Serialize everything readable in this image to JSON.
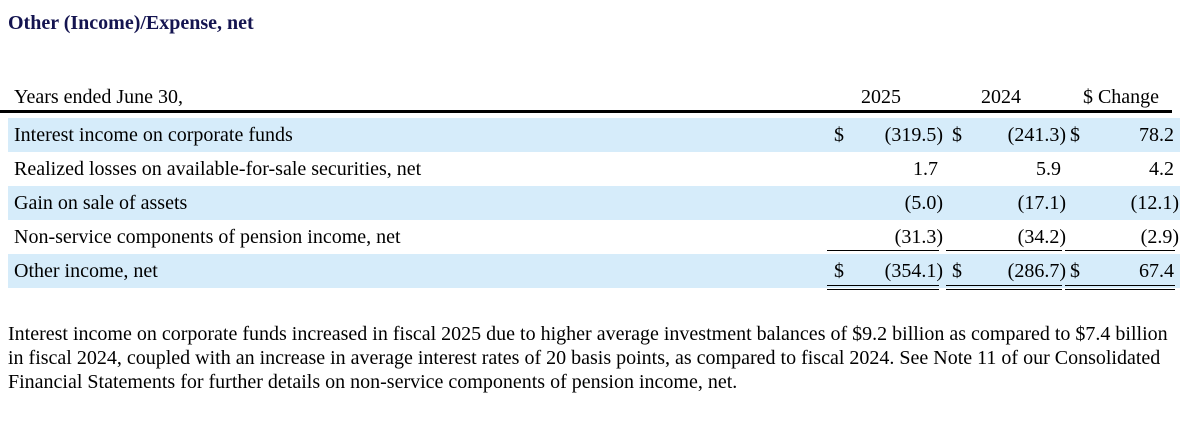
{
  "section_title": "Other (Income)/Expense, net",
  "table": {
    "header": {
      "label": "Years ended June 30,",
      "col_2025": "2025",
      "col_2024": "2024",
      "col_change": "$ Change"
    },
    "rows": [
      {
        "label": "Interest income on corporate funds",
        "dollar_2025": "$",
        "value_2025": "(319.5)",
        "dollar_2024": "$",
        "value_2024": "(241.3)",
        "dollar_change": "$",
        "value_change": "78.2"
      },
      {
        "label": "Realized losses on available-for-sale securities, net",
        "value_2025": "1.7",
        "value_2024": "5.9",
        "value_change": "4.2"
      },
      {
        "label": "Gain on sale of assets",
        "value_2025": "(5.0)",
        "value_2024": "(17.1)",
        "value_change": "(12.1)"
      },
      {
        "label": "Non-service components of pension income, net",
        "value_2025": "(31.3)",
        "value_2024": "(34.2)",
        "value_change": "(2.9)"
      },
      {
        "label": "Other income, net",
        "dollar_2025": "$",
        "value_2025": "(354.1)",
        "dollar_2024": "$",
        "value_2024": "(286.7)",
        "dollar_change": "$",
        "value_change": "67.4"
      }
    ]
  },
  "paragraph": "Interest income on corporate funds increased in fiscal 2025 due to higher average investment balances of $9.2 billion as compared to $7.4 billion in fiscal 2024, coupled with an increase in average interest rates of 20 basis points, as compared to fiscal 2024. See Note 11 of our Consolidated Financial Statements for further details on non-service components of pension income, net.",
  "colors": {
    "title": "#141450",
    "row_shade": "#d6ecfa"
  }
}
